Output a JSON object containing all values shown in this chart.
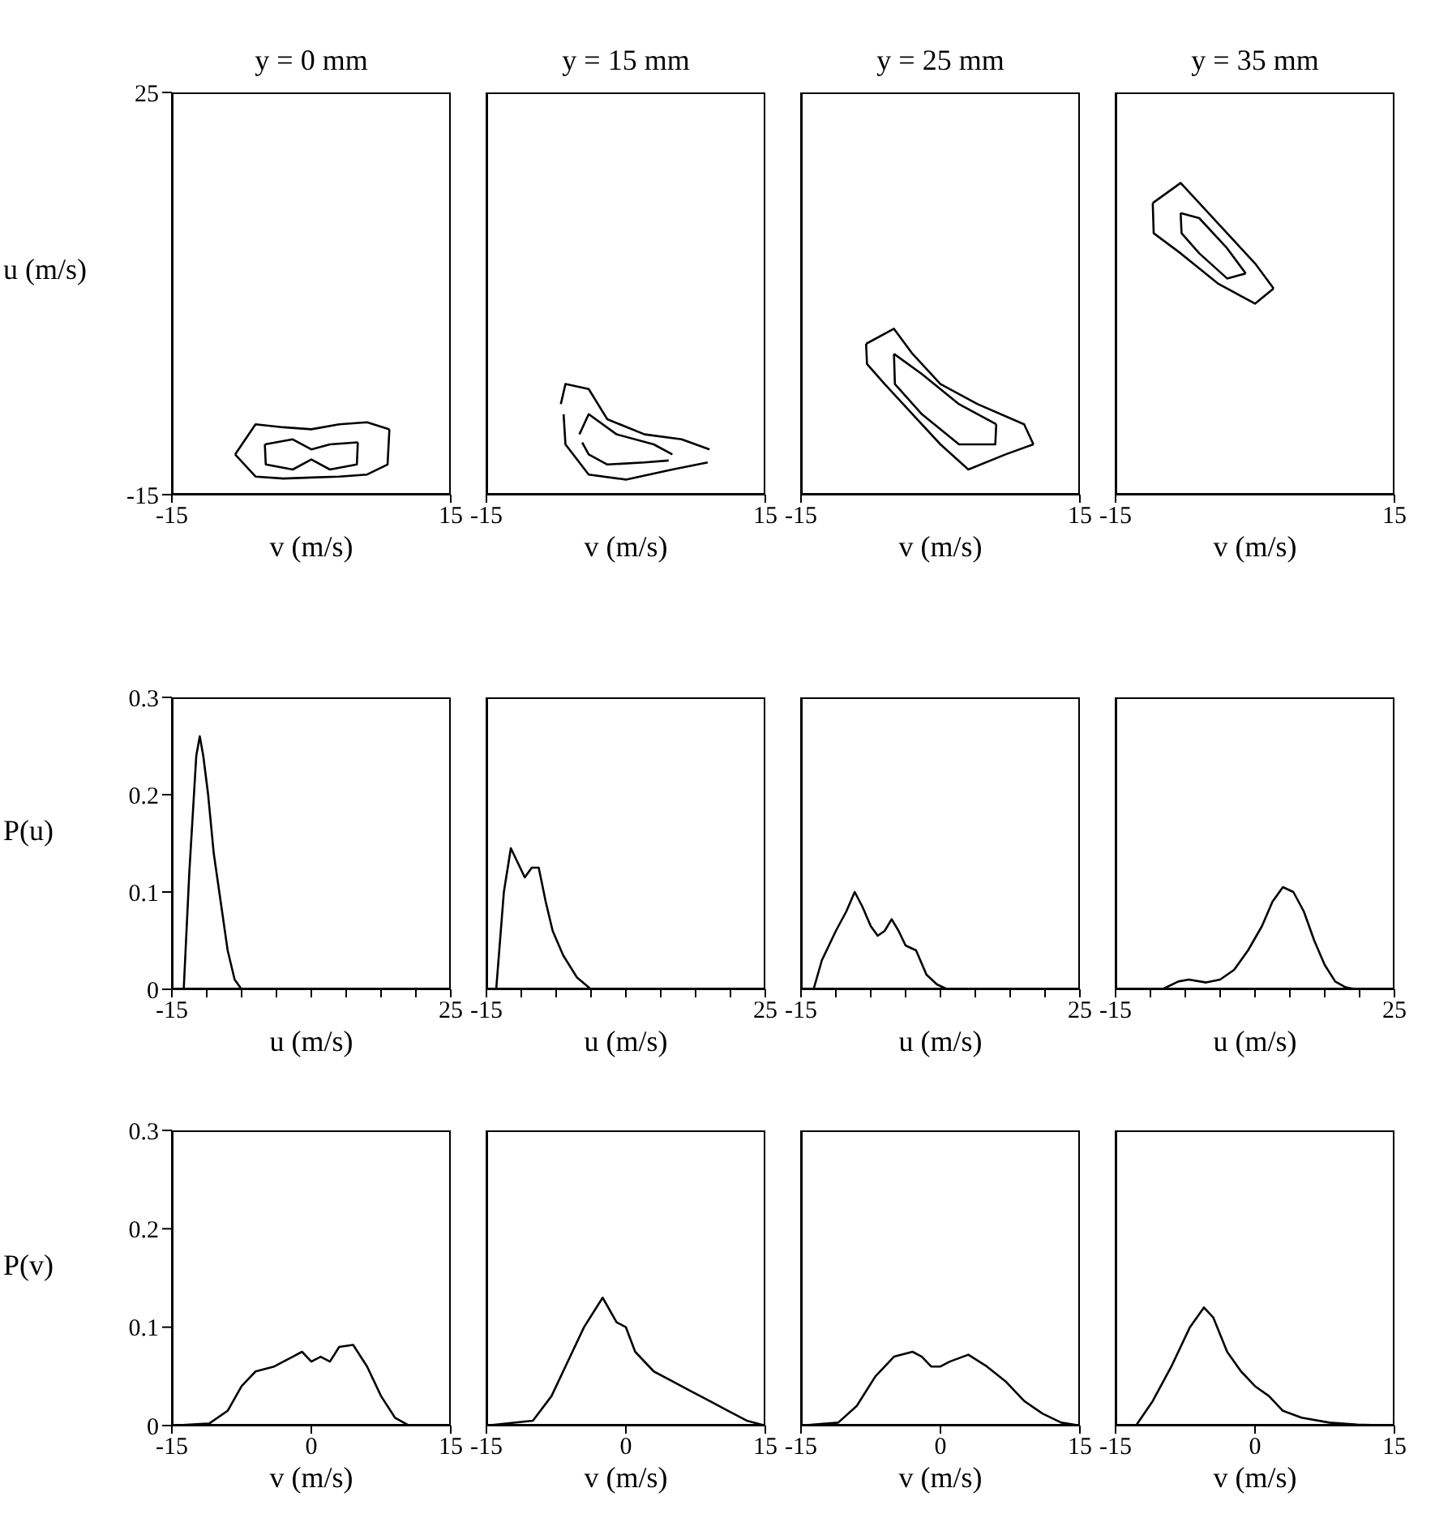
{
  "chart_data": [
    {
      "type": "line",
      "title": "y = 0 mm",
      "xlabel": "v (m/s)",
      "ylabel": "u (m/s)",
      "xlim": [
        -15,
        15
      ],
      "ylim": [
        -15,
        25
      ],
      "xticks": [
        -15,
        15
      ],
      "yticks": [
        -15,
        25
      ],
      "series": [
        {
          "color": "#000000",
          "x": [
            -8.2,
            -6,
            -3,
            0,
            3,
            6,
            8.4
          ],
          "values": [
            -11,
            -8,
            -8.3,
            -8.5,
            -8,
            -7.8,
            -8.5
          ]
        },
        {
          "color": "#000000",
          "x": [
            -8.2,
            -6,
            -3,
            0,
            3,
            6,
            8.2,
            8.4
          ],
          "values": [
            -11,
            -13.2,
            -13.4,
            -13.3,
            -13.2,
            -13,
            -12,
            -8.5
          ]
        },
        {
          "color": "#000000",
          "x": [
            -5,
            -2,
            0,
            2,
            5
          ],
          "values": [
            -10,
            -9.5,
            -10.5,
            -10,
            -9.8
          ]
        },
        {
          "color": "#000000",
          "x": [
            -5,
            -4.9,
            -2,
            0,
            2,
            4.9,
            5
          ],
          "values": [
            -10,
            -12,
            -12.5,
            -11.5,
            -12.5,
            -12,
            -9.8
          ]
        }
      ]
    },
    {
      "type": "line",
      "title": "y = 15 mm",
      "xlabel": "v (m/s)",
      "xlim": [
        -15,
        15
      ],
      "ylim": [
        -15,
        25
      ],
      "xticks": [
        -15,
        15
      ],
      "tick_labels": "x",
      "series": [
        {
          "color": "#000000",
          "x": [
            -7,
            -6.5,
            -4,
            -2,
            2,
            6,
            9
          ],
          "values": [
            -6,
            -4,
            -4.5,
            -7.5,
            -9,
            -9.5,
            -10.5
          ]
        },
        {
          "color": "#000000",
          "x": [
            -6.7,
            -6.5,
            -4,
            0,
            5,
            8.8
          ],
          "values": [
            -7,
            -10,
            -13,
            -13.5,
            -12.5,
            -11.8
          ]
        },
        {
          "color": "#000000",
          "x": [
            -5,
            -4,
            -1,
            3,
            5
          ],
          "values": [
            -9,
            -7,
            -9,
            -10,
            -11
          ]
        },
        {
          "color": "#000000",
          "x": [
            -4.7,
            -4,
            -2,
            2,
            4.6
          ],
          "values": [
            -9.8,
            -11,
            -12,
            -11.8,
            -11.6
          ]
        }
      ]
    },
    {
      "type": "line",
      "title": "y = 25 mm",
      "xlabel": "v (m/s)",
      "xlim": [
        -15,
        15
      ],
      "ylim": [
        -15,
        25
      ],
      "xticks": [
        -15,
        15
      ],
      "tick_labels": "x",
      "series": [
        {
          "color": "#000000",
          "x": [
            -8,
            -5,
            -3,
            0,
            4,
            9,
            10
          ],
          "values": [
            0,
            1.5,
            -1,
            -4,
            -6,
            -8,
            -10
          ]
        },
        {
          "color": "#000000",
          "x": [
            -8,
            -7.9,
            -6,
            -3,
            0,
            3,
            7,
            10
          ],
          "values": [
            0,
            -2,
            -4,
            -7,
            -10,
            -12.5,
            -11,
            -10
          ]
        },
        {
          "color": "#000000",
          "x": [
            -5,
            -2,
            2,
            6
          ],
          "values": [
            -1,
            -3,
            -6,
            -8
          ]
        },
        {
          "color": "#000000",
          "x": [
            -5,
            -4.9,
            -2,
            2,
            5.9,
            6
          ],
          "values": [
            -1,
            -4,
            -7,
            -10,
            -10,
            -8
          ]
        }
      ]
    },
    {
      "type": "line",
      "title": "y = 35 mm",
      "xlabel": "v (m/s)",
      "xlim": [
        -15,
        15
      ],
      "ylim": [
        -15,
        25
      ],
      "xticks": [
        -15,
        15
      ],
      "tick_labels": "x",
      "series": [
        {
          "color": "#000000",
          "x": [
            -11,
            -8,
            -6,
            -3,
            0,
            2
          ],
          "values": [
            14,
            16,
            14,
            11,
            8,
            5.5
          ]
        },
        {
          "color": "#000000",
          "x": [
            -11,
            -10.9,
            -8,
            -4,
            0,
            2
          ],
          "values": [
            14,
            11,
            9,
            6,
            4,
            5.5
          ]
        },
        {
          "color": "#000000",
          "x": [
            -8,
            -6,
            -3,
            -1
          ],
          "values": [
            13,
            12.5,
            9.5,
            7
          ]
        },
        {
          "color": "#000000",
          "x": [
            -8,
            -7.9,
            -6,
            -3,
            -1
          ],
          "values": [
            13,
            11,
            9,
            6.5,
            7
          ]
        }
      ]
    },
    {
      "type": "line",
      "xlabel": "u (m/s)",
      "ylabel": "P(u)",
      "xlim": [
        -15,
        25
      ],
      "ylim": [
        0,
        0.3
      ],
      "xticks": [
        -15,
        {
          "value": -10,
          "label": null
        },
        {
          "value": -5,
          "label": null
        },
        {
          "value": 0,
          "label": null
        },
        {
          "value": 5,
          "label": null
        },
        {
          "value": 10,
          "label": null
        },
        {
          "value": 15,
          "label": null
        },
        {
          "value": 20,
          "label": null
        },
        25
      ],
      "yticks": [
        0,
        0.1,
        0.2,
        0.3
      ],
      "series": [
        {
          "color": "#000000",
          "x": [
            -15,
            -13.3,
            -12.5,
            -11.5,
            -11,
            -10.5,
            -9.8,
            -9,
            -8,
            -7,
            -6,
            -5,
            25
          ],
          "values": [
            0,
            0,
            0.12,
            0.24,
            0.26,
            0.24,
            0.2,
            0.14,
            0.09,
            0.04,
            0.01,
            0,
            0
          ]
        }
      ]
    },
    {
      "type": "line",
      "xlabel": "u (m/s)",
      "xlim": [
        -15,
        25
      ],
      "ylim": [
        0,
        0.3
      ],
      "xticks": [
        -15,
        {
          "value": -10,
          "label": null
        },
        {
          "value": -5,
          "label": null
        },
        {
          "value": 0,
          "label": null
        },
        {
          "value": 5,
          "label": null
        },
        {
          "value": 10,
          "label": null
        },
        {
          "value": 15,
          "label": null
        },
        {
          "value": 20,
          "label": null
        },
        25
      ],
      "yticks": [
        0,
        0.1,
        0.2,
        0.3
      ],
      "tick_labels": "x",
      "series": [
        {
          "color": "#000000",
          "x": [
            -15,
            -13.6,
            -12.5,
            -11.5,
            -10.5,
            -9.5,
            -8.5,
            -7.5,
            -6.5,
            -5.5,
            -4,
            -2,
            0,
            25
          ],
          "values": [
            0,
            0,
            0.1,
            0.145,
            0.13,
            0.115,
            0.125,
            0.125,
            0.09,
            0.06,
            0.035,
            0.012,
            0,
            0
          ]
        }
      ]
    },
    {
      "type": "line",
      "xlabel": "u (m/s)",
      "xlim": [
        -15,
        25
      ],
      "ylim": [
        0,
        0.3
      ],
      "xticks": [
        -15,
        {
          "value": -10,
          "label": null
        },
        {
          "value": -5,
          "label": null
        },
        {
          "value": 0,
          "label": null
        },
        {
          "value": 5,
          "label": null
        },
        {
          "value": 10,
          "label": null
        },
        {
          "value": 15,
          "label": null
        },
        {
          "value": 20,
          "label": null
        },
        25
      ],
      "yticks": [
        0,
        0.1,
        0.2,
        0.3
      ],
      "tick_labels": "x",
      "series": [
        {
          "color": "#000000",
          "x": [
            -15,
            -13.2,
            -12,
            -10,
            -8.5,
            -7.3,
            -6.2,
            -5,
            -4,
            -3,
            -2,
            -1,
            0,
            1.5,
            3,
            4.5,
            6,
            25
          ],
          "values": [
            0,
            0,
            0.03,
            0.06,
            0.08,
            0.1,
            0.085,
            0.065,
            0.055,
            0.06,
            0.072,
            0.06,
            0.045,
            0.04,
            0.015,
            0.005,
            0,
            0
          ]
        }
      ]
    },
    {
      "type": "line",
      "xlabel": "u (m/s)",
      "xlim": [
        -15,
        25
      ],
      "ylim": [
        0,
        0.3
      ],
      "xticks": [
        -15,
        {
          "value": -10,
          "label": null
        },
        {
          "value": -5,
          "label": null
        },
        {
          "value": 0,
          "label": null
        },
        {
          "value": 5,
          "label": null
        },
        {
          "value": 10,
          "label": null
        },
        {
          "value": 15,
          "label": null
        },
        {
          "value": 20,
          "label": null
        },
        25
      ],
      "yticks": [
        0,
        0.1,
        0.2,
        0.3
      ],
      "tick_labels": "x",
      "series": [
        {
          "color": "#000000",
          "x": [
            -15,
            -8.3,
            -6,
            -4.5,
            -2,
            0,
            2,
            4,
            6,
            7.5,
            9,
            10.5,
            12,
            13.5,
            15,
            16.5,
            18,
            19.5,
            25
          ],
          "values": [
            0,
            0,
            0.008,
            0.01,
            0.007,
            0.01,
            0.02,
            0.04,
            0.065,
            0.09,
            0.105,
            0.1,
            0.08,
            0.05,
            0.025,
            0.008,
            0.002,
            0,
            0
          ]
        }
      ]
    },
    {
      "type": "line",
      "xlabel": "v (m/s)",
      "ylabel": "P(v)",
      "xlim": [
        -15,
        15
      ],
      "ylim": [
        0,
        0.3
      ],
      "xticks": [
        -15,
        0,
        15
      ],
      "yticks": [
        0,
        0.1,
        0.2,
        0.3
      ],
      "series": [
        {
          "color": "#000000",
          "x": [
            -15,
            -11,
            -9,
            -7.5,
            -6,
            -4,
            -2,
            -1,
            0,
            1,
            2,
            3,
            4.5,
            6,
            7.5,
            9,
            10.5,
            15
          ],
          "values": [
            0,
            0.002,
            0.015,
            0.04,
            0.055,
            0.06,
            0.07,
            0.075,
            0.065,
            0.07,
            0.065,
            0.08,
            0.082,
            0.06,
            0.03,
            0.008,
            0,
            0
          ]
        }
      ]
    },
    {
      "type": "line",
      "xlabel": "v (m/s)",
      "xlim": [
        -15,
        15
      ],
      "ylim": [
        0,
        0.3
      ],
      "xticks": [
        -15,
        0,
        15
      ],
      "yticks": [
        0,
        0.1,
        0.2,
        0.3
      ],
      "tick_labels": "x",
      "series": [
        {
          "color": "#000000",
          "x": [
            -15,
            -10,
            -8,
            -6,
            -4.5,
            -2.5,
            -1,
            0,
            1,
            3,
            5,
            7,
            9,
            11,
            13,
            15
          ],
          "values": [
            0,
            0.005,
            0.03,
            0.07,
            0.1,
            0.13,
            0.105,
            0.1,
            0.075,
            0.055,
            0.045,
            0.035,
            0.025,
            0.015,
            0.005,
            0
          ]
        }
      ]
    },
    {
      "type": "line",
      "xlabel": "v (m/s)",
      "xlim": [
        -15,
        15
      ],
      "ylim": [
        0,
        0.3
      ],
      "xticks": [
        -15,
        0,
        15
      ],
      "yticks": [
        0,
        0.1,
        0.2,
        0.3
      ],
      "tick_labels": "x",
      "series": [
        {
          "color": "#000000",
          "x": [
            -15,
            -11,
            -9,
            -7,
            -5,
            -3,
            -2,
            -1,
            0,
            1,
            3,
            5,
            7,
            9,
            11,
            13,
            15
          ],
          "values": [
            0,
            0.003,
            0.02,
            0.05,
            0.07,
            0.075,
            0.07,
            0.06,
            0.06,
            0.065,
            0.072,
            0.06,
            0.045,
            0.025,
            0.012,
            0.003,
            0
          ]
        }
      ]
    },
    {
      "type": "line",
      "xlabel": "v (m/s)",
      "xlim": [
        -15,
        15
      ],
      "ylim": [
        0,
        0.3
      ],
      "xticks": [
        -15,
        0,
        15
      ],
      "yticks": [
        0,
        0.1,
        0.2,
        0.3
      ],
      "tick_labels": "x",
      "series": [
        {
          "color": "#000000",
          "x": [
            -15,
            -12.8,
            -11,
            -9,
            -7,
            -5.5,
            -4.5,
            -3,
            -1.5,
            0,
            1.5,
            3,
            5,
            8,
            11,
            15
          ],
          "values": [
            0,
            0,
            0.025,
            0.06,
            0.1,
            0.12,
            0.11,
            0.075,
            0.055,
            0.04,
            0.03,
            0.015,
            0.008,
            0.003,
            0.001,
            0
          ]
        }
      ]
    }
  ]
}
